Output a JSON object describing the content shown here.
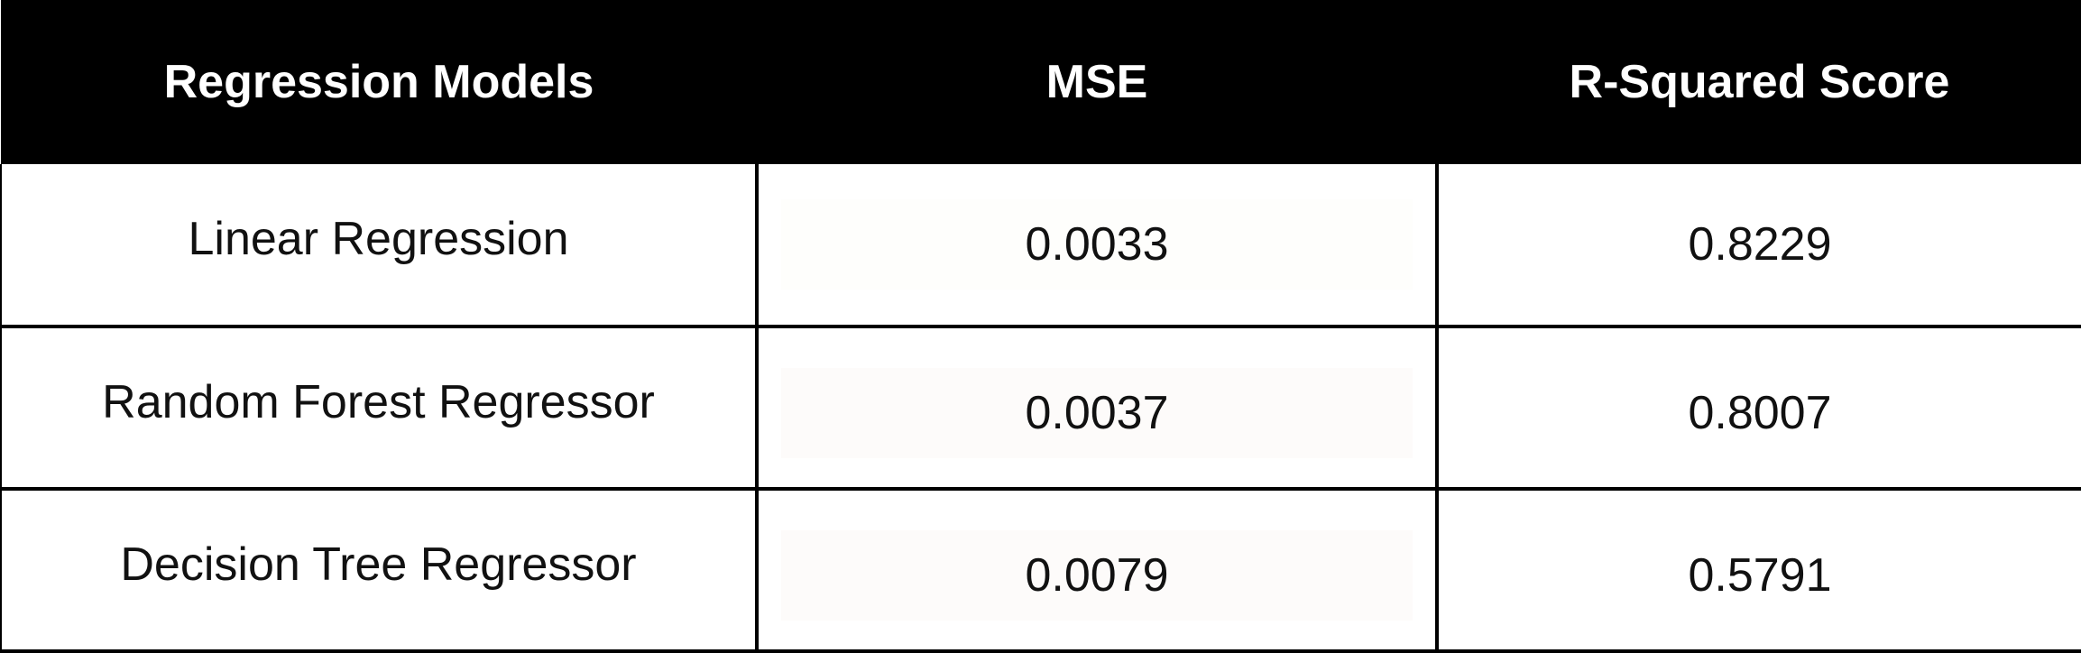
{
  "table": {
    "headers": [
      "Regression Models",
      "MSE",
      "R-Squared Score"
    ],
    "rows": [
      {
        "model": "Linear Regression",
        "mse": "0.0033",
        "r2": "0.8229"
      },
      {
        "model": "Random Forest Regressor",
        "mse": "0.0037",
        "r2": "0.8007"
      },
      {
        "model": "Decision Tree Regressor",
        "mse": "0.0079",
        "r2": "0.5791"
      }
    ]
  },
  "colors": {
    "header_bg": "#000000",
    "header_text": "#ffffff",
    "cell_text": "#111111",
    "grid": "#000000"
  }
}
